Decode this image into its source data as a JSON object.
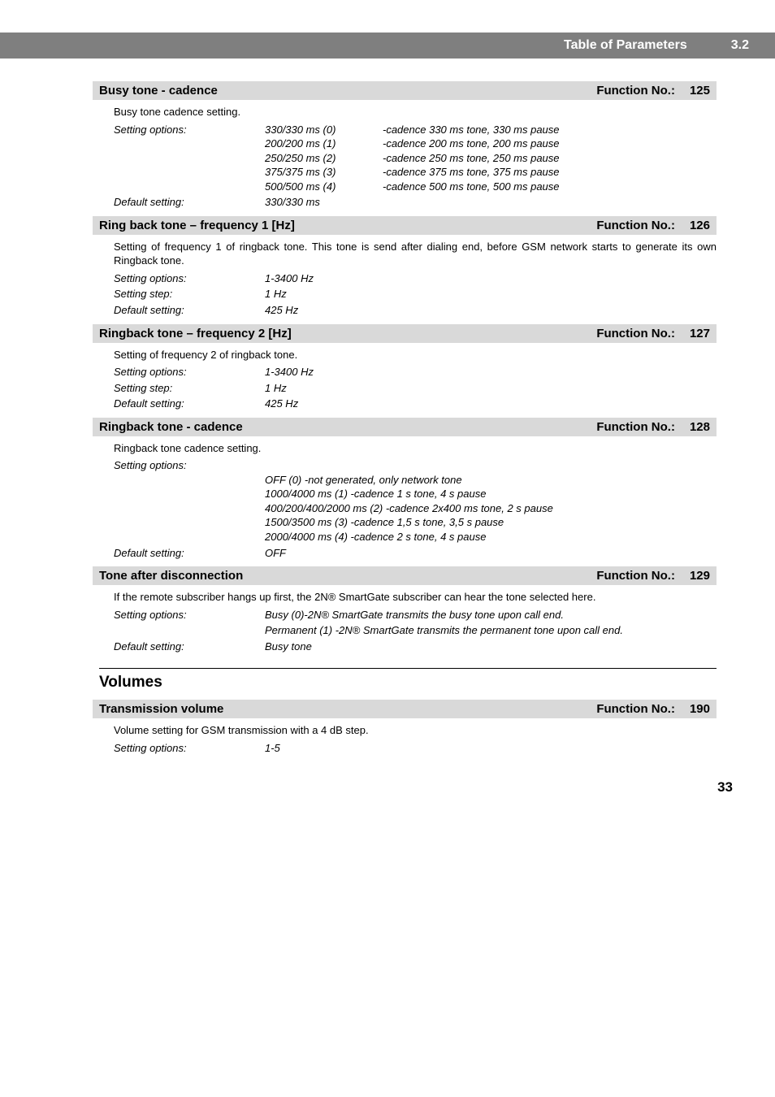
{
  "header": {
    "title": "Table of Parameters",
    "chapter": "3.2"
  },
  "sections": [
    {
      "title": "Busy tone - cadence",
      "fn_label": "Function No.:",
      "fn_num": "125",
      "desc": "Busy tone cadence setting.",
      "cadence_label": "Setting options:",
      "cadence_rows": [
        {
          "opt": "330/330 ms (0)",
          "txt": "-cadence 330 ms tone, 330 ms pause"
        },
        {
          "opt": "200/200 ms (1)",
          "txt": "-cadence 200 ms tone, 200 ms pause"
        },
        {
          "opt": "250/250 ms (2)",
          "txt": "-cadence 250 ms tone, 250 ms pause"
        },
        {
          "opt": "375/375 ms (3)",
          "txt": "-cadence 375 ms tone, 375 ms pause"
        },
        {
          "opt": "500/500 ms (4)",
          "txt": "-cadence 500 ms tone, 500 ms pause"
        }
      ],
      "kv": [
        {
          "k": "Default setting:",
          "v": "330/330 ms"
        }
      ]
    },
    {
      "title": "Ring back tone – frequency 1 [Hz]",
      "fn_label": "Function No.:",
      "fn_num": "126",
      "desc": "Setting of frequency 1 of ringback tone. This tone is send after dialing end, before GSM network starts to generate its own Ringback tone.",
      "kv": [
        {
          "k": "Setting options:",
          "v": "1-3400 Hz"
        },
        {
          "k": "Setting step:",
          "v": "1 Hz"
        },
        {
          "k": "Default setting:",
          "v": "425 Hz"
        }
      ]
    },
    {
      "title": "Ringback tone – frequency 2 [Hz]",
      "fn_label": "Function No.:",
      "fn_num": "127",
      "desc": "Setting of frequency 2 of ringback tone.",
      "kv": [
        {
          "k": "Setting options:",
          "v": "1-3400 Hz"
        },
        {
          "k": "Setting step:",
          "v": "1 Hz"
        },
        {
          "k": "Default setting:",
          "v": "425 Hz"
        }
      ]
    },
    {
      "title": "Ringback tone - cadence",
      "fn_label": "Function No.:",
      "fn_num": "128",
      "desc": "Ringback tone cadence setting.",
      "kv_pre": [
        {
          "k": "Setting options:",
          "v": ""
        }
      ],
      "block_lines": [
        "OFF (0) -not generated, only network tone",
        "1000/4000 ms (1) -cadence 1 s tone, 4 s pause",
        "400/200/400/2000 ms (2) -cadence 2x400 ms tone, 2 s pause",
        "1500/3500 ms (3) -cadence 1,5 s tone, 3,5 s pause",
        "2000/4000 ms (4) -cadence 2 s tone, 4 s pause"
      ],
      "kv": [
        {
          "k": "Default setting:",
          "v": "OFF"
        }
      ]
    },
    {
      "title": "Tone after disconnection",
      "fn_label": "Function No.:",
      "fn_num": "129",
      "desc": "If the remote subscriber hangs up first, the 2N® SmartGate subscriber can hear the tone selected here.",
      "kv_multi": [
        {
          "k": "Setting options:",
          "v": "Busy (0)-2N® SmartGate transmits the busy tone upon call end."
        },
        {
          "k": "",
          "v": "Permanent (1) -2N® SmartGate transmits the permanent tone upon call end."
        },
        {
          "k": "Default setting:",
          "v": "Busy tone"
        }
      ]
    }
  ],
  "volumes_heading": "Volumes",
  "vol_section": {
    "title": "Transmission volume",
    "fn_label": "Function No.:",
    "fn_num": "190",
    "desc": "Volume setting for GSM transmission with a 4 dB step.",
    "kv": [
      {
        "k": "Setting options:",
        "v": "1-5"
      }
    ]
  },
  "page_number": "33"
}
